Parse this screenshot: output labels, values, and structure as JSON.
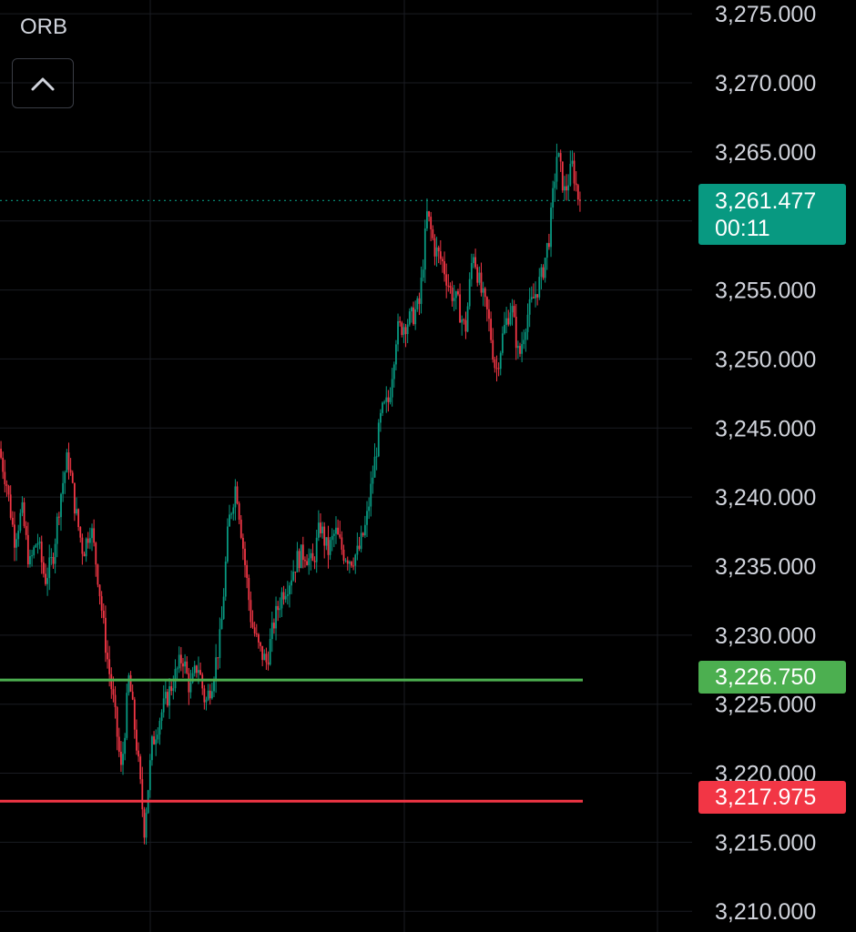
{
  "indicator": {
    "name": "ORB",
    "collapse_icon": "chevron-up-icon"
  },
  "colors": {
    "up": "#089981",
    "down": "#f23645",
    "orb_high": "#4caf50",
    "orb_low": "#f23645",
    "grid": "#1a1c22",
    "text": "#d1d4dc"
  },
  "price_badge": {
    "price": "3,261.477",
    "countdown": "00:11"
  },
  "orb_high": {
    "label": "3,226.750",
    "value": 3226.75
  },
  "orb_low": {
    "label": "3,217.975",
    "value": 3217.975
  },
  "chart_data": {
    "type": "line",
    "ylim": [
      3208.5,
      3276
    ],
    "y_ticks": [
      "3,275.000",
      "3,270.000",
      "3,265.000",
      "3,260.000",
      "3,255.000",
      "3,250.000",
      "3,245.000",
      "3,240.000",
      "3,235.000",
      "3,230.000",
      "3,225.000",
      "3,220.000",
      "3,215.000",
      "3,210.000"
    ],
    "y_tick_values": [
      3275,
      3270,
      3265,
      3260,
      3255,
      3250,
      3245,
      3240,
      3235,
      3230,
      3225,
      3220,
      3215,
      3210
    ],
    "current_price": 3261.477,
    "series": [
      {
        "values": [
          3243.5,
          3241,
          3237,
          3239,
          3235,
          3237,
          3234,
          3235.5,
          3240,
          3243,
          3239,
          3236,
          3238,
          3234,
          3229,
          3225,
          3220,
          3227,
          3222,
          3216,
          3222,
          3224,
          3225.5,
          3227,
          3228.5,
          3226,
          3228,
          3225,
          3227,
          3230,
          3238,
          3241,
          3236,
          3231,
          3229,
          3228,
          3231,
          3233,
          3234,
          3235.5,
          3236,
          3235,
          3238,
          3236,
          3237.5,
          3236,
          3235.5,
          3236,
          3238,
          3242,
          3246,
          3247,
          3252,
          3252.5,
          3253,
          3254,
          3260.5,
          3258,
          3257,
          3255,
          3254,
          3252,
          3258,
          3255,
          3253,
          3249,
          3252,
          3254,
          3250,
          3253,
          3254.5,
          3256,
          3259,
          3265,
          3262,
          3264,
          3261
        ]
      }
    ]
  }
}
